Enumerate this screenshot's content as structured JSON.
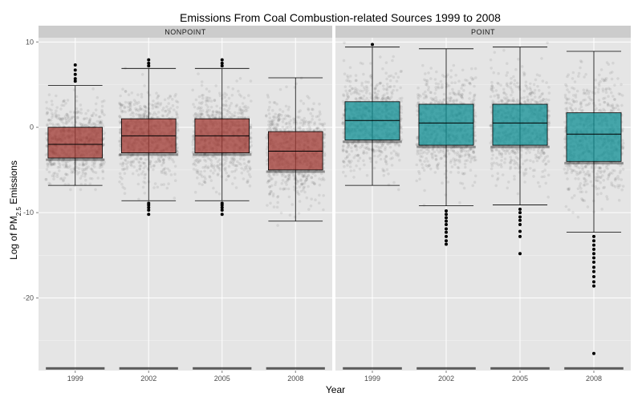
{
  "chart_data": {
    "type": "boxplot",
    "title": "Emissions From Coal Combustion-related Sources 1999 to 2008",
    "xlabel": "Year",
    "ylabel": {
      "prefix": "Log of PM",
      "subscript": "2.5",
      "suffix": " Emissions"
    },
    "categories": [
      "1999",
      "2002",
      "2005",
      "2008"
    ],
    "ylim": [
      -28.5,
      10.5
    ],
    "yticks": [
      10,
      0,
      -10,
      -20
    ],
    "grid": true,
    "facets": [
      {
        "name": "NONPOINT",
        "fill": "#a13a33",
        "boxes": [
          {
            "year": "1999",
            "whisker_low": -6.8,
            "q1": -3.6,
            "median": -2.0,
            "q3": 0.0,
            "whisker_high": 4.9,
            "outliers": [
              5.4,
              5.7,
              6.2,
              6.7,
              7.3
            ]
          },
          {
            "year": "2002",
            "whisker_low": -8.6,
            "q1": -3.0,
            "median": -1.0,
            "q3": 1.0,
            "whisker_high": 6.9,
            "outliers": [
              7.2,
              7.5,
              7.9,
              -8.9,
              -9.1,
              -9.4,
              -9.7,
              -10.2
            ]
          },
          {
            "year": "2005",
            "whisker_low": -8.6,
            "q1": -3.0,
            "median": -1.0,
            "q3": 1.0,
            "whisker_high": 6.9,
            "outliers": [
              7.2,
              7.5,
              7.9,
              -8.9,
              -9.1,
              -9.4,
              -9.7,
              -10.2
            ]
          },
          {
            "year": "2008",
            "whisker_low": -11.0,
            "q1": -5.0,
            "median": -2.8,
            "q3": -0.5,
            "whisker_high": 5.8,
            "outliers": []
          }
        ]
      },
      {
        "name": "POINT",
        "fill": "#0f8f94",
        "boxes": [
          {
            "year": "1999",
            "whisker_low": -6.8,
            "q1": -1.5,
            "median": 0.8,
            "q3": 3.0,
            "whisker_high": 9.4,
            "outliers": [
              9.7
            ]
          },
          {
            "year": "2002",
            "whisker_low": -9.2,
            "q1": -2.1,
            "median": 0.5,
            "q3": 2.7,
            "whisker_high": 9.2,
            "outliers": [
              -9.8,
              -10.2,
              -10.6,
              -11.0,
              -11.4,
              -11.9,
              -12.3,
              -12.8,
              -13.3,
              -13.7
            ]
          },
          {
            "year": "2005",
            "whisker_low": -9.1,
            "q1": -2.1,
            "median": 0.5,
            "q3": 2.7,
            "whisker_high": 9.4,
            "outliers": [
              -9.6,
              -10.0,
              -10.5,
              -10.9,
              -11.4,
              -12.2,
              -12.8,
              -14.8
            ]
          },
          {
            "year": "2008",
            "whisker_low": -12.3,
            "q1": -4.0,
            "median": -0.8,
            "q3": 1.7,
            "whisker_high": 8.9,
            "outliers": [
              -12.8,
              -13.3,
              -13.8,
              -14.3,
              -14.8,
              -15.3,
              -15.8,
              -16.4,
              -16.9,
              -17.5,
              -18.1,
              -18.6,
              -26.5
            ]
          }
        ]
      }
    ]
  }
}
